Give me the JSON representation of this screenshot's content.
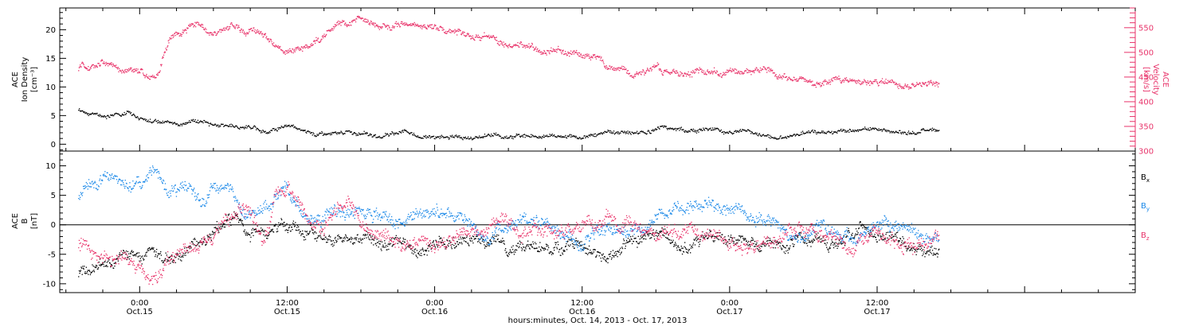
{
  "colors": {
    "black": "#000000",
    "pink": "#e8336a",
    "blue": "#1a88e8"
  },
  "chart_data": [
    {
      "type": "scatter",
      "panel": "top",
      "ylabel_left": [
        "ACE",
        "Ion Density",
        "[cm⁻³]"
      ],
      "ylabel_right": [
        "ACE",
        "Velocity",
        "[km/s]"
      ],
      "ylim_left": [
        -1.2,
        23.8
      ],
      "ylim_right": [
        300,
        590
      ],
      "yticks_left": [
        0,
        5,
        10,
        15,
        20
      ],
      "yticks_right": [
        300,
        350,
        400,
        450,
        500,
        550
      ],
      "series": [
        {
          "axis": "right",
          "color_key": "pink",
          "anchors": [
            [
              -5,
              470
            ],
            [
              -3,
              480
            ],
            [
              0,
              465
            ],
            [
              1.5,
              455
            ],
            [
              2.5,
              535
            ],
            [
              4,
              555
            ],
            [
              6,
              545
            ],
            [
              8,
              555
            ],
            [
              10,
              530
            ],
            [
              12,
              500
            ],
            [
              14,
              530
            ],
            [
              16,
              555
            ],
            [
              18,
              565
            ],
            [
              20,
              560
            ],
            [
              22,
              550
            ],
            [
              24,
              545
            ],
            [
              26,
              535
            ],
            [
              28,
              535
            ],
            [
              30,
              520
            ],
            [
              32,
              510
            ],
            [
              34,
              500
            ],
            [
              36,
              490
            ],
            [
              37,
              490
            ],
            [
              38,
              478
            ],
            [
              40,
              470
            ],
            [
              42,
              465
            ],
            [
              44,
              460
            ],
            [
              46,
              462
            ],
            [
              48,
              458
            ],
            [
              50,
              460
            ],
            [
              52,
              455
            ],
            [
              54,
              450
            ],
            [
              56,
              445
            ],
            [
              58,
              440
            ],
            [
              60,
              440
            ],
            [
              62,
              435
            ],
            [
              64,
              428
            ],
            [
              65,
              425
            ]
          ],
          "spread": 9
        },
        {
          "axis": "left",
          "color_key": "black",
          "anchors": [
            [
              -5,
              6
            ],
            [
              -3,
              5
            ],
            [
              -1,
              5.5
            ],
            [
              0,
              4.7
            ],
            [
              2,
              4.3
            ],
            [
              4,
              4.0
            ],
            [
              6,
              3.5
            ],
            [
              8,
              2.8
            ],
            [
              10,
              2.6
            ],
            [
              12,
              3.0
            ],
            [
              14,
              2.2
            ],
            [
              16,
              1.7
            ],
            [
              18,
              1.8
            ],
            [
              20,
              2.0
            ],
            [
              22,
              1.8
            ],
            [
              24,
              1.5
            ],
            [
              26,
              1.6
            ],
            [
              28,
              1.7
            ],
            [
              30,
              1.6
            ],
            [
              32,
              1.6
            ],
            [
              34,
              1.8
            ],
            [
              36,
              2.0
            ],
            [
              38,
              2.3
            ],
            [
              40,
              2.0
            ],
            [
              42,
              2.4
            ],
            [
              44,
              2.7
            ],
            [
              46,
              2.6
            ],
            [
              48,
              1.8
            ],
            [
              50,
              2.2
            ],
            [
              52,
              2.0
            ],
            [
              54,
              2.0
            ],
            [
              56,
              2.3
            ],
            [
              58,
              2.2
            ],
            [
              60,
              2.6
            ],
            [
              62,
              2.2
            ],
            [
              64,
              2.4
            ],
            [
              65,
              2.3
            ]
          ],
          "spread": 0.5
        }
      ]
    },
    {
      "type": "scatter",
      "panel": "bottom",
      "ylabel_left": [
        "ACE",
        "B",
        "[nT]"
      ],
      "ylim": [
        -11.5,
        12.5
      ],
      "yticks": [
        -10,
        -5,
        0,
        5,
        10
      ],
      "legend": [
        {
          "label": "Bx",
          "main": "B",
          "sub": "x",
          "color_key": "black"
        },
        {
          "label": "By",
          "main": "B",
          "sub": "y",
          "color_key": "blue"
        },
        {
          "label": "Bz",
          "main": "B",
          "sub": "z",
          "color_key": "pink"
        }
      ],
      "series": [
        {
          "name": "Bx",
          "color_key": "black",
          "anchors": [
            [
              -5,
              -8
            ],
            [
              -3,
              -6
            ],
            [
              -1,
              -4
            ],
            [
              0,
              -5
            ],
            [
              1,
              -3
            ],
            [
              2,
              -7
            ],
            [
              3,
              -5
            ],
            [
              4,
              -3
            ],
            [
              5,
              -2
            ],
            [
              6,
              0
            ],
            [
              7,
              2
            ],
            [
              8,
              1
            ],
            [
              9,
              -1
            ],
            [
              10,
              0
            ],
            [
              11,
              1
            ],
            [
              12,
              0
            ],
            [
              13,
              -1
            ],
            [
              14,
              -2
            ],
            [
              16,
              -2
            ],
            [
              18,
              -3
            ],
            [
              20,
              -2
            ],
            [
              22,
              -3
            ],
            [
              24,
              -2.5
            ],
            [
              26,
              -3
            ],
            [
              28,
              -2
            ],
            [
              30,
              -3
            ],
            [
              32,
              -3.5
            ],
            [
              34,
              -3
            ],
            [
              36,
              -3.5
            ],
            [
              38,
              -4
            ],
            [
              40,
              -3.5
            ],
            [
              42,
              -3
            ],
            [
              44,
              -3.5
            ],
            [
              46,
              -3
            ],
            [
              48,
              -3
            ],
            [
              50,
              -2.5
            ],
            [
              52,
              -3
            ],
            [
              54,
              -3
            ],
            [
              56,
              -3.5
            ],
            [
              58,
              -3
            ],
            [
              60,
              -2
            ],
            [
              62,
              -3
            ],
            [
              64,
              -4.5
            ],
            [
              65,
              -4.5
            ]
          ],
          "spread": 1.4
        },
        {
          "name": "By",
          "color_key": "blue",
          "anchors": [
            [
              -5,
              5
            ],
            [
              -4,
              7
            ],
            [
              -3,
              8
            ],
            [
              -2,
              9
            ],
            [
              -1,
              9
            ],
            [
              0,
              8
            ],
            [
              1,
              10
            ],
            [
              2,
              7
            ],
            [
              3,
              6
            ],
            [
              4,
              7
            ],
            [
              5,
              5
            ],
            [
              6,
              6
            ],
            [
              7,
              7
            ],
            [
              8,
              4
            ],
            [
              9,
              2
            ],
            [
              10,
              3
            ],
            [
              11,
              4
            ],
            [
              12,
              5
            ],
            [
              13,
              3
            ],
            [
              14,
              2
            ],
            [
              15,
              2
            ],
            [
              16,
              3
            ],
            [
              18,
              3
            ],
            [
              20,
              2
            ],
            [
              22,
              1
            ],
            [
              24,
              1
            ],
            [
              26,
              2
            ],
            [
              28,
              1
            ],
            [
              30,
              0
            ],
            [
              32,
              0
            ],
            [
              34,
              -1
            ],
            [
              36,
              -2
            ],
            [
              38,
              -1
            ],
            [
              40,
              0
            ],
            [
              42,
              1
            ],
            [
              44,
              1
            ],
            [
              46,
              2
            ],
            [
              48,
              3
            ],
            [
              50,
              2
            ],
            [
              52,
              0
            ],
            [
              54,
              -1
            ],
            [
              56,
              -1
            ],
            [
              58,
              -2
            ],
            [
              60,
              0
            ],
            [
              62,
              1
            ],
            [
              63,
              0
            ],
            [
              64,
              -1
            ],
            [
              65,
              -2
            ]
          ],
          "spread": 1.5
        },
        {
          "name": "Bz",
          "color_key": "pink",
          "anchors": [
            [
              -5,
              -3
            ],
            [
              -4,
              -4
            ],
            [
              -2,
              -5
            ],
            [
              0,
              -6
            ],
            [
              1,
              -8
            ],
            [
              2,
              -6
            ],
            [
              3,
              -4
            ],
            [
              4,
              -2
            ],
            [
              5,
              0
            ],
            [
              6,
              -2
            ],
            [
              7,
              1
            ],
            [
              8,
              3
            ],
            [
              9,
              3
            ],
            [
              10,
              -3
            ],
            [
              11,
              4
            ],
            [
              12,
              5
            ],
            [
              13,
              3
            ],
            [
              14,
              1
            ],
            [
              15,
              0
            ],
            [
              16,
              2
            ],
            [
              17,
              4
            ],
            [
              18,
              1
            ],
            [
              20,
              -1
            ],
            [
              22,
              -2
            ],
            [
              24,
              -3
            ],
            [
              26,
              -1
            ],
            [
              28,
              0
            ],
            [
              30,
              0
            ],
            [
              32,
              -2
            ],
            [
              34,
              -2
            ],
            [
              36,
              -1
            ],
            [
              38,
              0
            ],
            [
              40,
              1
            ],
            [
              42,
              -1
            ],
            [
              44,
              0
            ],
            [
              46,
              -2
            ],
            [
              48,
              -2
            ],
            [
              50,
              -3
            ],
            [
              52,
              -1
            ],
            [
              54,
              0
            ],
            [
              56,
              -2
            ],
            [
              58,
              -4
            ],
            [
              60,
              -2
            ],
            [
              62,
              -3
            ],
            [
              64,
              -2
            ],
            [
              65,
              -1
            ]
          ],
          "spread": 1.6
        }
      ]
    }
  ],
  "x_axis": {
    "xlim_hours": [
      -6.5,
      81
    ],
    "ticks": [
      {
        "hours": 0,
        "time": "0:00",
        "date": "Oct.15"
      },
      {
        "hours": 12,
        "time": "12:00",
        "date": "Oct.15"
      },
      {
        "hours": 24,
        "time": "0:00",
        "date": "Oct.16"
      },
      {
        "hours": 36,
        "time": "12:00",
        "date": "Oct.16"
      },
      {
        "hours": 48,
        "time": "0:00",
        "date": "Oct.17"
      },
      {
        "hours": 60,
        "time": "12:00",
        "date": "Oct.17"
      }
    ],
    "label": "hours:minutes, Oct. 14, 2013 - Oct. 17, 2013"
  }
}
